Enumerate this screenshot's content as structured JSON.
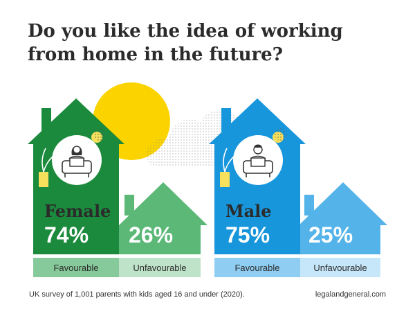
{
  "title_line1": "Do you like the idea of working",
  "title_line2": "from home in the future?",
  "footnote": "UK survey of 1,001 parents with kids aged 16 and under (2020).",
  "source": "legalandgeneral.com",
  "colors": {
    "female_dark": "#1b8a3c",
    "female_light": "#5bb877",
    "female_fav_label_bg": "#86c99a",
    "female_unfav_label_bg": "#bfe3c8",
    "male_dark": "#1896db",
    "male_light": "#54b3e8",
    "male_fav_label_bg": "#8fcef2",
    "male_unfav_label_bg": "#c6e6f9",
    "sun": "#fbd400",
    "accent_yellow": "#f6e05c"
  },
  "chart_data": {
    "type": "bar",
    "categories": [
      "Female",
      "Male"
    ],
    "series": [
      {
        "name": "Favourable",
        "values": [
          74,
          75
        ]
      },
      {
        "name": "Unfavourable",
        "values": [
          26,
          25
        ]
      }
    ],
    "value_labels": {
      "female_favourable": "74%",
      "female_unfavourable": "26%",
      "male_favourable": "75%",
      "male_unfavourable": "25%"
    },
    "labels": {
      "female": "Female",
      "male": "Male",
      "favourable": "Favourable",
      "unfavourable": "Unfavourable"
    }
  }
}
